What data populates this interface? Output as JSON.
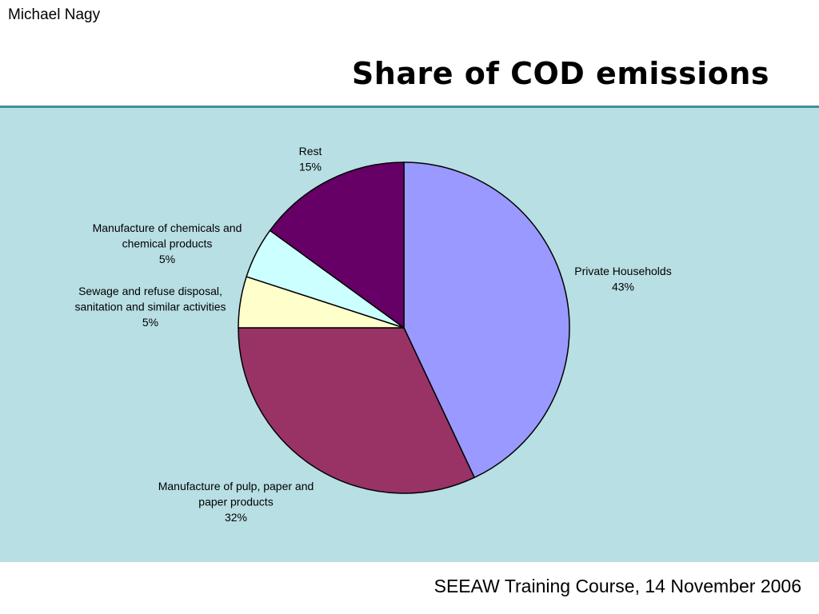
{
  "header": {
    "author": "Michael Nagy",
    "title": "Share of COD emissions"
  },
  "footer": {
    "text": "SEEAW Training Course, 14 November 2006"
  },
  "colors": {
    "panel_background": "#b8dfe3",
    "rule": "#3f8f9c"
  },
  "chart_data": {
    "type": "pie",
    "title": "",
    "start_angle_deg": 0,
    "direction": "clockwise",
    "slices": [
      {
        "label_lines": [
          "Private Households"
        ],
        "percent_label": "43%",
        "value": 43,
        "color": "#9999ff"
      },
      {
        "label_lines": [
          "Manufacture of pulp, paper and",
          "paper products"
        ],
        "percent_label": "32%",
        "value": 32,
        "color": "#993366"
      },
      {
        "label_lines": [
          "Sewage and refuse disposal,",
          "sanitation and similar activities"
        ],
        "percent_label": "5%",
        "value": 5,
        "color": "#ffffcc"
      },
      {
        "label_lines": [
          "Manufacture of chemicals and",
          "chemical products"
        ],
        "percent_label": "5%",
        "value": 5,
        "color": "#ccffff"
      },
      {
        "label_lines": [
          "Rest"
        ],
        "percent_label": "15%",
        "value": 15,
        "color": "#660066"
      }
    ]
  }
}
